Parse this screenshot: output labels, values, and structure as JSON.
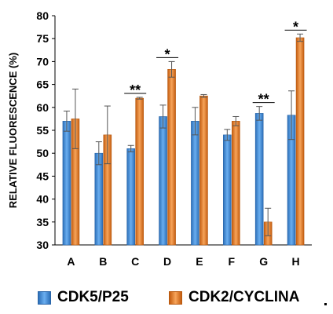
{
  "chart_data": {
    "type": "bar",
    "title": "",
    "xlabel": "",
    "ylabel": "RELATIVE FLUORESCENCE (%)",
    "ylim": [
      30,
      80
    ],
    "yticks": [
      30,
      35,
      40,
      45,
      50,
      55,
      60,
      65,
      70,
      75,
      80
    ],
    "grid": false,
    "legend_position": "bottom",
    "categories": [
      "A",
      "B",
      "C",
      "D",
      "E",
      "F",
      "G",
      "H"
    ],
    "series": [
      {
        "name": "CDK5/P25",
        "color": "#4a90d9",
        "values": [
          57.0,
          50.0,
          51.0,
          58.0,
          57.0,
          54.0,
          58.7,
          58.3
        ],
        "errors": [
          2.2,
          2.5,
          0.7,
          2.5,
          3.0,
          1.2,
          1.5,
          5.3
        ]
      },
      {
        "name": "CDK2/CYCLINA",
        "color": "#f08a2c",
        "values": [
          57.5,
          54.0,
          62.0,
          68.3,
          62.5,
          57.0,
          35.0,
          75.2
        ],
        "errors": [
          6.5,
          6.3,
          0.2,
          1.7,
          0.3,
          1.0,
          3.0,
          0.8
        ]
      }
    ],
    "significance": [
      {
        "category": "C",
        "label": "**"
      },
      {
        "category": "D",
        "label": "*"
      },
      {
        "category": "G",
        "label": "**"
      },
      {
        "category": "H",
        "label": "*"
      }
    ]
  }
}
